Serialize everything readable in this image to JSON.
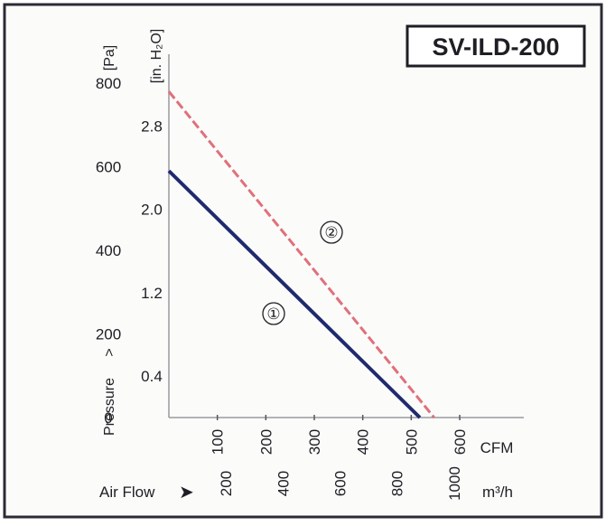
{
  "chart_data": {
    "type": "line",
    "model_label": "SV-ILD-200",
    "y_axis": {
      "label": "Pressure",
      "label_arrow": ">",
      "primary_unit": "[Pa]",
      "primary_ticks": [
        "800",
        "600",
        "400",
        "200",
        "0"
      ],
      "secondary_unit": "[in. H₂O]",
      "secondary_ticks": [
        "2.8",
        "2.0",
        "1.2",
        "0.4"
      ],
      "ylim_pa": [
        0,
        800
      ]
    },
    "x_axis": {
      "label": "Air Flow",
      "label_arrow": "➤",
      "cfm_unit": "CFM",
      "cfm_ticks": [
        "100",
        "200",
        "300",
        "400",
        "500",
        "600"
      ],
      "m3h_unit": "m³/h",
      "m3h_ticks": [
        "200",
        "400",
        "600",
        "800",
        "1000"
      ],
      "xlim_m3h": [
        0,
        1130
      ]
    },
    "series": [
      {
        "name": "①",
        "color": "#1f2a6e",
        "style": "solid",
        "x_m3h": [
          0,
          880
        ],
        "y_pa": [
          590,
          0
        ]
      },
      {
        "name": "②",
        "color": "#e0707a",
        "style": "dashed",
        "x_m3h": [
          0,
          930
        ],
        "y_pa": [
          780,
          0
        ]
      }
    ],
    "grid": false
  }
}
